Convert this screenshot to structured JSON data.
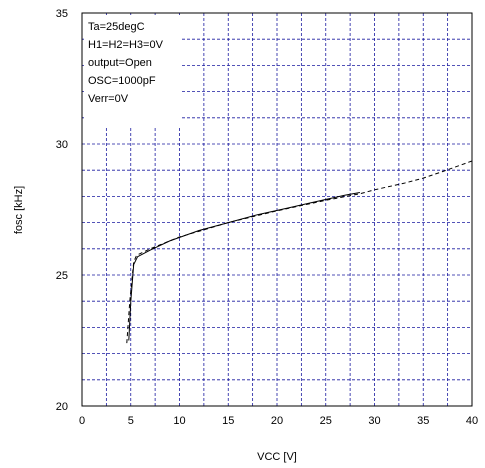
{
  "chart_data": {
    "type": "line",
    "title": "",
    "xlabel": "VCC [V]",
    "ylabel": "fosc [kHz]",
    "xlim": [
      0,
      40
    ],
    "ylim": [
      20,
      35
    ],
    "x_ticks": [
      0,
      5,
      10,
      15,
      20,
      25,
      30,
      35,
      40
    ],
    "y_ticks": [
      20,
      25,
      30,
      35
    ],
    "x_grid_step": 2.5,
    "y_grid_step": 1,
    "grid": true,
    "annotations": [
      "Ta=25degC",
      "H1=H2=H3=0V",
      "output=Open",
      "OSC=1000pF",
      "Verr=0V"
    ],
    "series": [
      {
        "name": "",
        "style": "solid",
        "points": [
          [
            4.8,
            22.5
          ],
          [
            5.0,
            24.0
          ],
          [
            5.3,
            25.4
          ],
          [
            5.7,
            25.7
          ],
          [
            7,
            25.95
          ],
          [
            9,
            26.3
          ],
          [
            12,
            26.7
          ],
          [
            15,
            27.0
          ],
          [
            18,
            27.3
          ],
          [
            21,
            27.55
          ],
          [
            24,
            27.8
          ],
          [
            27,
            28.05
          ],
          [
            28.5,
            28.15
          ]
        ]
      },
      {
        "name": "",
        "style": "dashed",
        "points": [
          [
            4.6,
            22.4
          ],
          [
            4.9,
            24.0
          ],
          [
            5.3,
            25.5
          ],
          [
            5.6,
            25.75
          ],
          [
            7,
            26.0
          ],
          [
            10,
            26.45
          ],
          [
            15,
            27.0
          ],
          [
            20,
            27.45
          ],
          [
            25,
            27.85
          ],
          [
            28.5,
            28.1
          ],
          [
            30,
            28.25
          ],
          [
            33,
            28.5
          ],
          [
            35,
            28.7
          ],
          [
            37,
            28.95
          ],
          [
            40,
            29.35
          ]
        ]
      }
    ]
  }
}
